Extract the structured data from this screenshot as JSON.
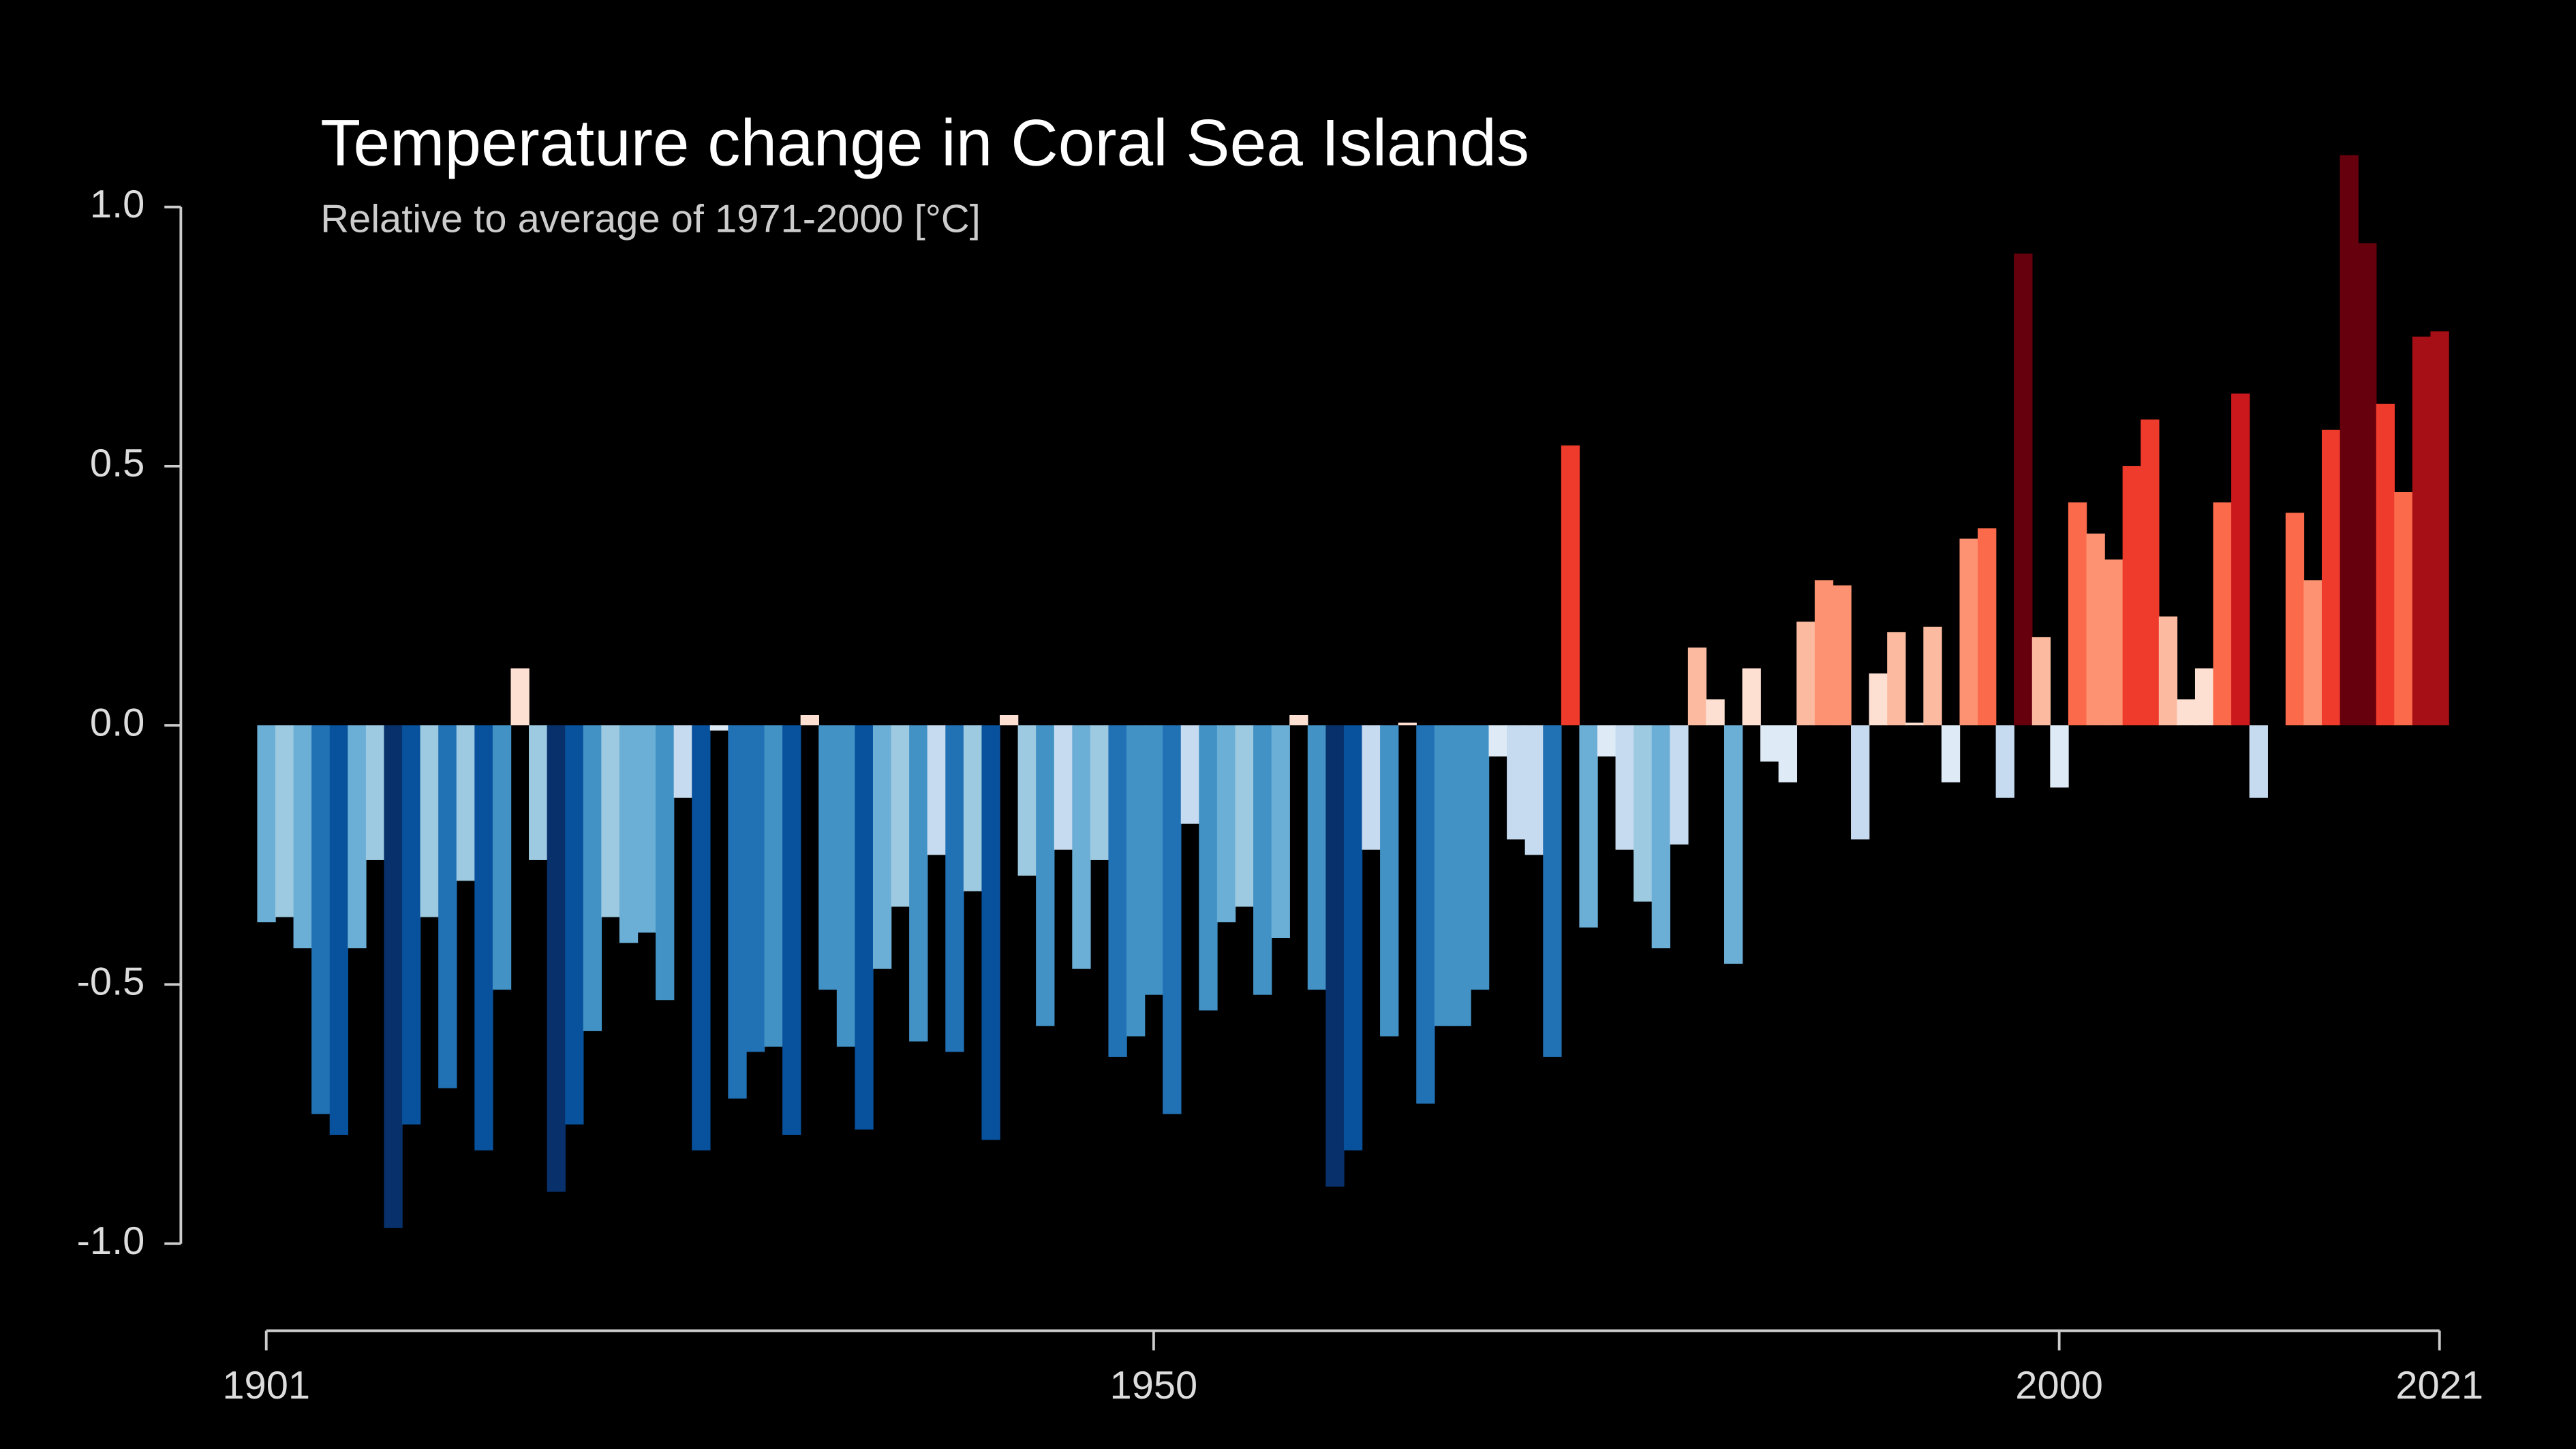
{
  "chart_data": {
    "type": "bar",
    "title": "Temperature change in Coral Sea Islands",
    "subtitle": "Relative to average of 1971-2000  [°C]",
    "x": [
      1901,
      1902,
      1903,
      1904,
      1905,
      1906,
      1907,
      1908,
      1909,
      1910,
      1911,
      1912,
      1913,
      1914,
      1915,
      1916,
      1917,
      1918,
      1919,
      1920,
      1921,
      1922,
      1923,
      1924,
      1925,
      1926,
      1927,
      1928,
      1929,
      1930,
      1931,
      1932,
      1933,
      1934,
      1935,
      1936,
      1937,
      1938,
      1939,
      1940,
      1941,
      1942,
      1943,
      1944,
      1945,
      1946,
      1947,
      1948,
      1949,
      1950,
      1951,
      1952,
      1953,
      1954,
      1955,
      1956,
      1957,
      1958,
      1959,
      1960,
      1961,
      1962,
      1963,
      1964,
      1965,
      1966,
      1967,
      1968,
      1969,
      1970,
      1971,
      1972,
      1973,
      1974,
      1975,
      1976,
      1977,
      1978,
      1979,
      1980,
      1981,
      1982,
      1983,
      1984,
      1985,
      1986,
      1987,
      1988,
      1989,
      1990,
      1991,
      1992,
      1993,
      1994,
      1995,
      1996,
      1997,
      1998,
      1999,
      2000,
      2001,
      2002,
      2003,
      2004,
      2005,
      2006,
      2007,
      2008,
      2009,
      2010,
      2011,
      2012,
      2013,
      2014,
      2015,
      2016,
      2017,
      2018,
      2019,
      2020,
      2021
    ],
    "values": [
      -0.38,
      -0.37,
      -0.43,
      -0.75,
      -0.79,
      -0.43,
      -0.26,
      -0.97,
      -0.77,
      -0.37,
      -0.7,
      -0.3,
      -0.82,
      -0.51,
      0.11,
      -0.26,
      -0.9,
      -0.77,
      -0.59,
      -0.37,
      -0.42,
      -0.4,
      -0.53,
      -0.14,
      -0.82,
      -0.01,
      -0.72,
      -0.63,
      -0.62,
      -0.79,
      0.02,
      -0.51,
      -0.62,
      -0.78,
      -0.47,
      -0.35,
      -0.61,
      -0.25,
      -0.63,
      -0.32,
      -0.8,
      0.02,
      -0.29,
      -0.58,
      -0.24,
      -0.47,
      -0.26,
      -0.64,
      -0.6,
      -0.52,
      -0.75,
      -0.19,
      -0.55,
      -0.38,
      -0.35,
      -0.52,
      -0.41,
      0.02,
      -0.51,
      -0.89,
      -0.82,
      -0.24,
      -0.6,
      0.005,
      -0.73,
      -0.58,
      -0.58,
      -0.51,
      -0.06,
      -0.22,
      -0.25,
      -0.64,
      0.54,
      -0.39,
      -0.06,
      -0.24,
      -0.34,
      -0.43,
      -0.23,
      0.15,
      0.05,
      -0.46,
      0.11,
      -0.07,
      -0.11,
      0.2,
      0.28,
      0.27,
      -0.22,
      0.1,
      0.18,
      0.005,
      0.19,
      -0.11,
      0.36,
      0.38,
      -0.14,
      0.91,
      0.17,
      -0.12,
      0.43,
      0.37,
      0.32,
      0.5,
      0.59,
      0.21,
      0.05,
      0.11,
      0.43,
      0.64,
      -0.14,
      0.0,
      0.41,
      0.28,
      0.57,
      1.1,
      0.93,
      0.62,
      0.45,
      0.75,
      0.76
    ],
    "colormap": [
      "#08306b",
      "#08519c",
      "#2171b5",
      "#4292c6",
      "#6baed6",
      "#9ecae1",
      "#c6dbef",
      "#deebf7",
      "#fee0d2",
      "#fcbba1",
      "#fc9272",
      "#fb6a4a",
      "#ef3b2c",
      "#cb181d",
      "#a50f15",
      "#67000d"
    ],
    "xlim": [
      1901,
      2021
    ],
    "xticks": [
      1901,
      1950,
      2000,
      2021
    ],
    "ylim": [
      -1.0,
      1.0
    ],
    "yticks": [
      {
        "value": -1.0,
        "label": "-1.0"
      },
      {
        "value": -0.5,
        "label": "-0.5"
      },
      {
        "value": 0,
        "label": "0.0"
      },
      {
        "value": 0.5,
        "label": "0.5"
      },
      {
        "value": 1.0,
        "label": "1.0"
      }
    ]
  }
}
